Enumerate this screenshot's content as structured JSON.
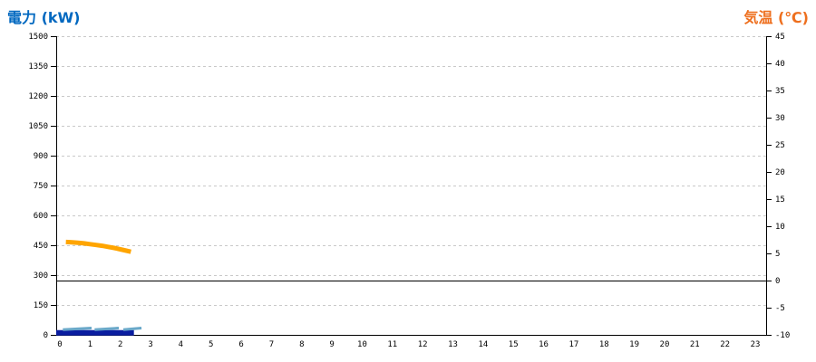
{
  "page": {
    "left_axis_title": "電力 (kW)",
    "right_axis_title": "気温 (℃)"
  },
  "colors": {
    "left_title": "#0068C0",
    "right_title": "#EE6F1E",
    "grid": "#C9C9C9",
    "axis": "#000000",
    "zero_line": "#000000",
    "background": "#FFFFFF",
    "temperature_line": "#FFA500",
    "power_line_dark": "#0A1DA0",
    "power_dash_light": "#69A8C9"
  },
  "chart_data": {
    "type": "line",
    "title": "",
    "legend": "none",
    "grid": "dashed horizontal gridlines at left-axis ticks",
    "x_axis": {
      "label": "",
      "tick_labels": [
        "0",
        "1",
        "2",
        "3",
        "4",
        "5",
        "6",
        "7",
        "8",
        "9",
        "10",
        "11",
        "12",
        "13",
        "14",
        "15",
        "16",
        "17",
        "18",
        "19",
        "20",
        "21",
        "22",
        "23"
      ],
      "range_hours": [
        0,
        23
      ]
    },
    "left_axis": {
      "label": "電力 (kW)",
      "range": [
        0,
        1500
      ],
      "tick_step": 150,
      "tick_labels": [
        "0",
        "150",
        "300",
        "450",
        "600",
        "750",
        "900",
        "1050",
        "1200",
        "1350",
        "1500"
      ]
    },
    "right_axis": {
      "label": "気温 (℃)",
      "range": [
        -10,
        45
      ],
      "tick_step": 5,
      "tick_labels": [
        "-10",
        "-5",
        "0",
        "5",
        "10",
        "15",
        "20",
        "25",
        "30",
        "35",
        "40",
        "45"
      ]
    },
    "zero_reference_line": {
      "axis": "right",
      "value": 0,
      "style": "solid",
      "color": "#000000"
    },
    "series": [
      {
        "id": "temperature-line",
        "axis": "right",
        "unit": "°C",
        "color": "#FFA500",
        "stroke_width": 5,
        "points": [
          [
            0.2,
            7.1
          ],
          [
            0.4,
            7.05
          ],
          [
            0.6,
            6.95
          ],
          [
            0.8,
            6.85
          ],
          [
            1.0,
            6.7
          ],
          [
            1.2,
            6.55
          ],
          [
            1.4,
            6.4
          ],
          [
            1.6,
            6.2
          ],
          [
            1.8,
            6.0
          ],
          [
            2.0,
            5.75
          ],
          [
            2.2,
            5.5
          ],
          [
            2.35,
            5.3
          ]
        ]
      },
      {
        "id": "power-line-dark-blue",
        "axis": "left",
        "unit": "kW",
        "color": "#0A1DA0",
        "stroke_width": 6,
        "points": [
          [
            -0.12,
            10
          ],
          [
            2.45,
            10
          ]
        ]
      },
      {
        "id": "power-dashes-light-blue",
        "axis": "left",
        "unit": "kW",
        "color": "#69A8C9",
        "stroke_width": 3,
        "segments": [
          [
            [
              0.1,
              26
            ],
            [
              1.05,
              34
            ]
          ],
          [
            [
              1.15,
              26
            ],
            [
              1.95,
              34
            ]
          ],
          [
            [
              2.1,
              26
            ],
            [
              2.7,
              34
            ]
          ]
        ]
      }
    ]
  }
}
